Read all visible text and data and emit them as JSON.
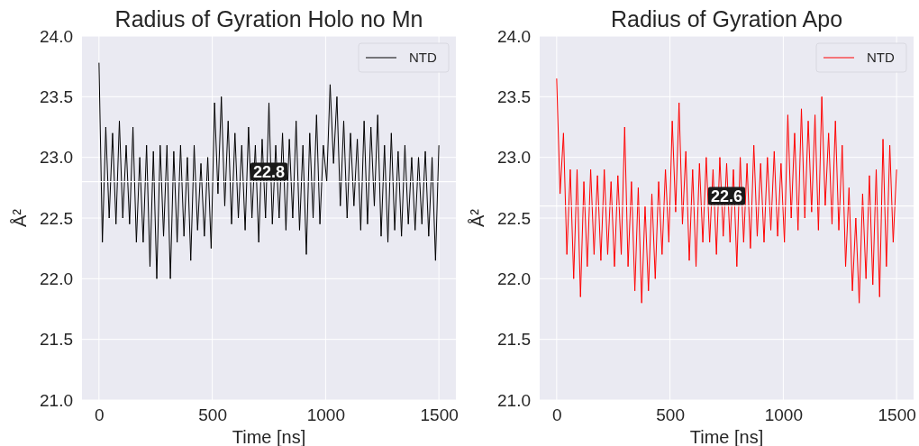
{
  "chart_data": [
    {
      "type": "line",
      "title": "Radius of Gyration Holo no Mn",
      "xlabel": "Time [ns]",
      "ylabel": "Å²",
      "xlim": [
        -75,
        1575
      ],
      "ylim": [
        21,
        24
      ],
      "xticks": [
        0,
        500,
        1000,
        1500
      ],
      "yticks": [
        {
          "value": 21,
          "label": "21.0"
        },
        {
          "value": 21.5,
          "label": "21.5"
        },
        {
          "value": 22,
          "label": "22.0"
        },
        {
          "value": 22.5,
          "label": "22.5"
        },
        {
          "value": 23,
          "label": "23.0"
        },
        {
          "value": 23.5,
          "label": "23.5"
        },
        {
          "value": 24,
          "label": "24.0"
        }
      ],
      "grid": true,
      "legend": "top right",
      "line_style": "solid",
      "marker": "none",
      "x": [
        0,
        15,
        30,
        45,
        60,
        75,
        90,
        105,
        120,
        135,
        150,
        165,
        180,
        195,
        210,
        225,
        240,
        255,
        270,
        285,
        300,
        315,
        330,
        345,
        360,
        375,
        390,
        405,
        420,
        435,
        450,
        465,
        480,
        495,
        510,
        525,
        540,
        555,
        570,
        585,
        600,
        615,
        630,
        645,
        660,
        675,
        690,
        705,
        720,
        735,
        750,
        765,
        780,
        795,
        810,
        825,
        840,
        855,
        870,
        885,
        900,
        915,
        930,
        945,
        960,
        975,
        990,
        1005,
        1020,
        1035,
        1050,
        1065,
        1080,
        1095,
        1110,
        1125,
        1140,
        1155,
        1170,
        1185,
        1200,
        1215,
        1230,
        1245,
        1260,
        1275,
        1290,
        1305,
        1320,
        1335,
        1350,
        1365,
        1380,
        1395,
        1410,
        1425,
        1440,
        1455,
        1470,
        1485,
        1500
      ],
      "series": [
        {
          "name": "NTD",
          "color": "#000000",
          "values": [
            23.78,
            22.3,
            23.25,
            22.5,
            23.2,
            22.45,
            23.3,
            22.5,
            23.1,
            22.45,
            23.25,
            22.3,
            23.0,
            22.3,
            23.1,
            22.1,
            23.05,
            22.0,
            23.1,
            22.35,
            23.1,
            22.0,
            23.05,
            22.3,
            23.1,
            22.35,
            23.0,
            22.15,
            23.1,
            22.4,
            22.95,
            22.35,
            23.0,
            22.25,
            23.45,
            22.7,
            23.5,
            22.6,
            23.3,
            22.45,
            23.2,
            22.5,
            23.1,
            22.4,
            23.25,
            22.5,
            23.1,
            22.3,
            23.15,
            22.5,
            23.45,
            22.45,
            23.1,
            22.5,
            23.2,
            22.4,
            23.15,
            22.5,
            23.3,
            22.4,
            23.1,
            22.2,
            23.2,
            22.5,
            23.35,
            22.45,
            23.1,
            22.8,
            23.6,
            22.95,
            23.5,
            22.6,
            23.3,
            22.5,
            23.2,
            22.6,
            23.15,
            22.4,
            23.3,
            22.45,
            23.25,
            22.6,
            23.35,
            22.35,
            23.1,
            22.3,
            23.2,
            22.4,
            23.05,
            22.35,
            23.1,
            22.45,
            23.0,
            22.4,
            23.0,
            22.45,
            23.05,
            22.35,
            23.0,
            22.15,
            23.1
          ]
        }
      ],
      "ref_lines": [
        {
          "axis": "y",
          "value": 22.8,
          "label": "22.8",
          "color": "#ffffff"
        }
      ]
    },
    {
      "type": "line",
      "title": "Radius of Gyration Apo",
      "xlabel": "Time [ns]",
      "ylabel": "Å²",
      "xlim": [
        -75,
        1575
      ],
      "ylim": [
        21,
        24
      ],
      "xticks": [
        0,
        500,
        1000,
        1500
      ],
      "yticks": [
        {
          "value": 21,
          "label": "21.0"
        },
        {
          "value": 21.5,
          "label": "21.5"
        },
        {
          "value": 22,
          "label": "22.0"
        },
        {
          "value": 22.5,
          "label": "22.5"
        },
        {
          "value": 23,
          "label": "23.0"
        },
        {
          "value": 23.5,
          "label": "23.5"
        },
        {
          "value": 24,
          "label": "24.0"
        }
      ],
      "grid": true,
      "legend": "top right",
      "line_style": "solid",
      "marker": "none",
      "x": [
        0,
        15,
        30,
        45,
        60,
        75,
        90,
        105,
        120,
        135,
        150,
        165,
        180,
        195,
        210,
        225,
        240,
        255,
        270,
        285,
        300,
        315,
        330,
        345,
        360,
        375,
        390,
        405,
        420,
        435,
        450,
        465,
        480,
        495,
        510,
        525,
        540,
        555,
        570,
        585,
        600,
        615,
        630,
        645,
        660,
        675,
        690,
        705,
        720,
        735,
        750,
        765,
        780,
        795,
        810,
        825,
        840,
        855,
        870,
        885,
        900,
        915,
        930,
        945,
        960,
        975,
        990,
        1005,
        1020,
        1035,
        1050,
        1065,
        1080,
        1095,
        1110,
        1125,
        1140,
        1155,
        1170,
        1185,
        1200,
        1215,
        1230,
        1245,
        1260,
        1275,
        1290,
        1305,
        1320,
        1335,
        1350,
        1365,
        1380,
        1395,
        1410,
        1425,
        1440,
        1455,
        1470,
        1485,
        1500
      ],
      "series": [
        {
          "name": "NTD",
          "color": "#ff0000",
          "values": [
            23.65,
            22.7,
            23.2,
            22.2,
            22.9,
            22.0,
            22.9,
            21.85,
            22.8,
            22.1,
            22.9,
            22.2,
            22.85,
            22.15,
            22.9,
            22.2,
            22.8,
            22.1,
            22.85,
            22.2,
            23.25,
            22.1,
            22.8,
            21.9,
            22.75,
            21.8,
            22.6,
            21.9,
            22.7,
            22.0,
            22.8,
            22.2,
            22.9,
            22.3,
            23.3,
            22.55,
            23.45,
            22.45,
            23.05,
            22.15,
            22.9,
            22.1,
            22.95,
            22.3,
            23.0,
            22.3,
            22.9,
            22.2,
            23.0,
            22.35,
            22.95,
            22.3,
            22.9,
            22.1,
            23.0,
            22.3,
            22.95,
            22.25,
            23.1,
            22.35,
            22.95,
            22.3,
            23.0,
            22.4,
            23.05,
            22.35,
            22.95,
            22.3,
            23.35,
            22.5,
            23.2,
            22.4,
            23.4,
            22.5,
            23.3,
            22.55,
            23.35,
            22.4,
            23.5,
            22.6,
            23.2,
            22.45,
            23.3,
            22.4,
            23.1,
            22.1,
            22.75,
            21.9,
            22.5,
            21.8,
            22.7,
            22.0,
            22.85,
            21.95,
            22.9,
            21.85,
            23.15,
            22.1,
            23.1,
            22.3,
            22.9
          ]
        }
      ],
      "ref_lines": [
        {
          "axis": "y",
          "value": 22.6,
          "label": "22.6",
          "color": "#ffffff"
        }
      ]
    }
  ]
}
